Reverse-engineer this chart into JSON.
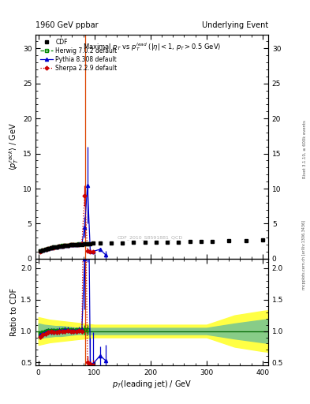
{
  "title_left": "1960 GeV ppbar",
  "title_right": "Underlying Event",
  "plot_title": "Maximal $p_T$ vs $p_T^{lead}$ ($|\\eta| < 1$, $p_T > 0.5$ GeV)",
  "ylabel_main": "$\\langle p_T^{rack} \\rangle$ / GeV",
  "ylabel_ratio": "Ratio to CDF",
  "xlabel": "$p_T$(leading jet) / GeV",
  "right_label": "Rivet 3.1.10, ≥ 600k events",
  "watermark": "mcpplots.cern.ch [arXiv:1306.3436]",
  "ylim_main": [
    0,
    32
  ],
  "ylim_ratio": [
    0.45,
    2.15
  ],
  "xlim": [
    -5,
    410
  ],
  "yticks_main": [
    0,
    5,
    10,
    15,
    20,
    25,
    30
  ],
  "yticks_ratio": [
    0.5,
    1.0,
    1.5,
    2.0
  ],
  "xticks": [
    0,
    100,
    200,
    300,
    400
  ],
  "vline_x": 83,
  "cdf_x": [
    2.5,
    7.5,
    12.5,
    17.5,
    22.5,
    27.5,
    32.5,
    37.5,
    42.5,
    47.5,
    52.5,
    57.5,
    62.5,
    67.5,
    72.5,
    77.5,
    82.5,
    87.5,
    92.5,
    97.5,
    110,
    130,
    150,
    170,
    190,
    210,
    230,
    250,
    270,
    290,
    310,
    340,
    370,
    400
  ],
  "cdf_y": [
    1.15,
    1.25,
    1.35,
    1.45,
    1.55,
    1.65,
    1.72,
    1.77,
    1.82,
    1.87,
    1.92,
    1.97,
    2.0,
    2.02,
    2.05,
    2.07,
    2.1,
    2.15,
    2.18,
    2.2,
    2.22,
    2.25,
    2.28,
    2.3,
    2.32,
    2.35,
    2.38,
    2.4,
    2.42,
    2.45,
    2.5,
    2.55,
    2.6,
    2.65
  ],
  "herwig_x": [
    2.5,
    7.5,
    12.5,
    17.5,
    22.5,
    27.5,
    32.5,
    37.5,
    42.5,
    47.5,
    52.5,
    57.5,
    62.5,
    67.5,
    72.5,
    77.5,
    82.5,
    87.5
  ],
  "herwig_y": [
    1.1,
    1.22,
    1.35,
    1.46,
    1.57,
    1.67,
    1.73,
    1.79,
    1.85,
    1.91,
    1.96,
    2.0,
    2.03,
    2.06,
    2.09,
    2.11,
    2.13,
    2.15
  ],
  "pythia_x": [
    2.5,
    7.5,
    12.5,
    17.5,
    22.5,
    27.5,
    32.5,
    37.5,
    42.5,
    47.5,
    52.5,
    57.5,
    62.5,
    67.5,
    72.5,
    77.5,
    82.5,
    87.5,
    92.5,
    97.5,
    110,
    120
  ],
  "pythia_y": [
    1.08,
    1.2,
    1.33,
    1.44,
    1.55,
    1.65,
    1.71,
    1.78,
    1.84,
    1.9,
    1.95,
    1.99,
    2.02,
    2.05,
    2.08,
    2.1,
    4.5,
    10.5,
    1.08,
    1.05,
    1.35,
    0.55
  ],
  "pythia_yerr": [
    0.05,
    0.05,
    0.05,
    0.05,
    0.05,
    0.05,
    0.05,
    0.05,
    0.05,
    0.05,
    0.05,
    0.05,
    0.05,
    0.05,
    0.05,
    0.05,
    1.5,
    5.5,
    0.05,
    0.05,
    0.2,
    0.6
  ],
  "sherpa_x": [
    2.5,
    7.5,
    12.5,
    17.5,
    22.5,
    27.5,
    32.5,
    37.5,
    42.5,
    47.5,
    52.5,
    57.5,
    62.5,
    67.5,
    72.5,
    77.5,
    82.5,
    87.5,
    92.5,
    97.5
  ],
  "sherpa_y": [
    1.05,
    1.18,
    1.3,
    1.42,
    1.53,
    1.62,
    1.69,
    1.75,
    1.81,
    1.87,
    1.93,
    1.97,
    2.0,
    2.03,
    2.06,
    2.08,
    9.0,
    1.1,
    1.05,
    1.0
  ],
  "sherpa_yerr": [
    0.03,
    0.03,
    0.03,
    0.03,
    0.03,
    0.03,
    0.03,
    0.03,
    0.03,
    0.03,
    0.03,
    0.03,
    0.03,
    0.03,
    0.03,
    0.03,
    1.5,
    0.05,
    0.05,
    0.05
  ],
  "ratio_herwig_x": [
    2.5,
    7.5,
    12.5,
    17.5,
    22.5,
    27.5,
    32.5,
    37.5,
    42.5,
    47.5,
    52.5,
    57.5,
    62.5,
    67.5,
    72.5,
    77.5,
    82.5,
    87.5
  ],
  "ratio_herwig_y": [
    0.96,
    0.98,
    1.0,
    1.01,
    1.01,
    1.01,
    1.01,
    1.01,
    1.02,
    1.02,
    1.02,
    1.02,
    1.01,
    1.02,
    1.02,
    1.02,
    1.02,
    1.02
  ],
  "ratio_herwig_yerr": [
    0.03,
    0.03,
    0.03,
    0.03,
    0.03,
    0.03,
    0.03,
    0.03,
    0.03,
    0.03,
    0.03,
    0.03,
    0.03,
    0.03,
    0.03,
    0.03,
    0.08,
    0.08
  ],
  "ratio_pythia_x": [
    2.5,
    7.5,
    12.5,
    17.5,
    22.5,
    27.5,
    32.5,
    37.5,
    42.5,
    47.5,
    52.5,
    57.5,
    62.5,
    67.5,
    72.5,
    77.5,
    82.5,
    87.5,
    92.5,
    97.5,
    110,
    120
  ],
  "ratio_pythia_y": [
    0.94,
    0.96,
    0.98,
    0.99,
    1.0,
    1.0,
    0.99,
    1.01,
    1.01,
    1.02,
    1.02,
    1.01,
    1.01,
    1.01,
    1.02,
    1.02,
    2.15,
    4.9,
    0.49,
    0.48,
    0.61,
    0.53
  ],
  "ratio_pythia_yerr": [
    0.05,
    0.05,
    0.05,
    0.05,
    0.05,
    0.05,
    0.05,
    0.05,
    0.05,
    0.05,
    0.05,
    0.05,
    0.05,
    0.05,
    0.05,
    0.05,
    0.8,
    2.8,
    0.4,
    0.5,
    0.15,
    0.25
  ],
  "ratio_sherpa_x": [
    2.5,
    7.5,
    12.5,
    17.5,
    22.5,
    27.5,
    32.5,
    37.5,
    42.5,
    47.5,
    52.5,
    57.5,
    62.5,
    67.5,
    72.5,
    77.5,
    82.5,
    87.5,
    92.5,
    97.5
  ],
  "ratio_sherpa_y": [
    0.91,
    0.94,
    0.96,
    0.98,
    0.99,
    0.98,
    0.98,
    0.99,
    1.0,
    1.0,
    1.01,
    1.0,
    1.0,
    1.0,
    1.01,
    1.0,
    4.3,
    0.51,
    0.48,
    0.46
  ],
  "ratio_sherpa_yerr": [
    0.04,
    0.04,
    0.04,
    0.04,
    0.04,
    0.04,
    0.04,
    0.04,
    0.04,
    0.04,
    0.04,
    0.04,
    0.04,
    0.04,
    0.04,
    0.04,
    0.8,
    0.1,
    0.08,
    0.08
  ],
  "yellow_band_x": [
    0,
    5,
    10,
    20,
    30,
    40,
    50,
    60,
    70,
    80,
    90,
    100,
    150,
    200,
    250,
    300,
    350,
    400,
    410
  ],
  "yellow_band_y1": [
    0.78,
    0.79,
    0.8,
    0.82,
    0.83,
    0.84,
    0.85,
    0.86,
    0.87,
    0.88,
    0.89,
    0.9,
    0.9,
    0.9,
    0.9,
    0.9,
    0.75,
    0.68,
    0.67
  ],
  "yellow_band_y2": [
    1.22,
    1.21,
    1.2,
    1.18,
    1.17,
    1.16,
    1.15,
    1.14,
    1.13,
    1.12,
    1.11,
    1.1,
    1.1,
    1.1,
    1.1,
    1.1,
    1.25,
    1.32,
    1.33
  ],
  "green_band_x": [
    0,
    5,
    10,
    20,
    30,
    40,
    50,
    60,
    70,
    80,
    90,
    100,
    150,
    200,
    250,
    300,
    350,
    400,
    410
  ],
  "green_band_y1": [
    0.88,
    0.89,
    0.9,
    0.91,
    0.92,
    0.92,
    0.93,
    0.94,
    0.95,
    0.95,
    0.95,
    0.95,
    0.95,
    0.95,
    0.95,
    0.95,
    0.88,
    0.82,
    0.81
  ],
  "green_band_y2": [
    1.12,
    1.11,
    1.1,
    1.09,
    1.08,
    1.08,
    1.07,
    1.06,
    1.05,
    1.05,
    1.05,
    1.05,
    1.05,
    1.05,
    1.05,
    1.05,
    1.12,
    1.18,
    1.19
  ],
  "cdf_color": "#000000",
  "herwig_color": "#008800",
  "pythia_color": "#0000cc",
  "sherpa_color": "#cc0000",
  "yellow_color": "#ffff44",
  "green_color": "#88cc88"
}
